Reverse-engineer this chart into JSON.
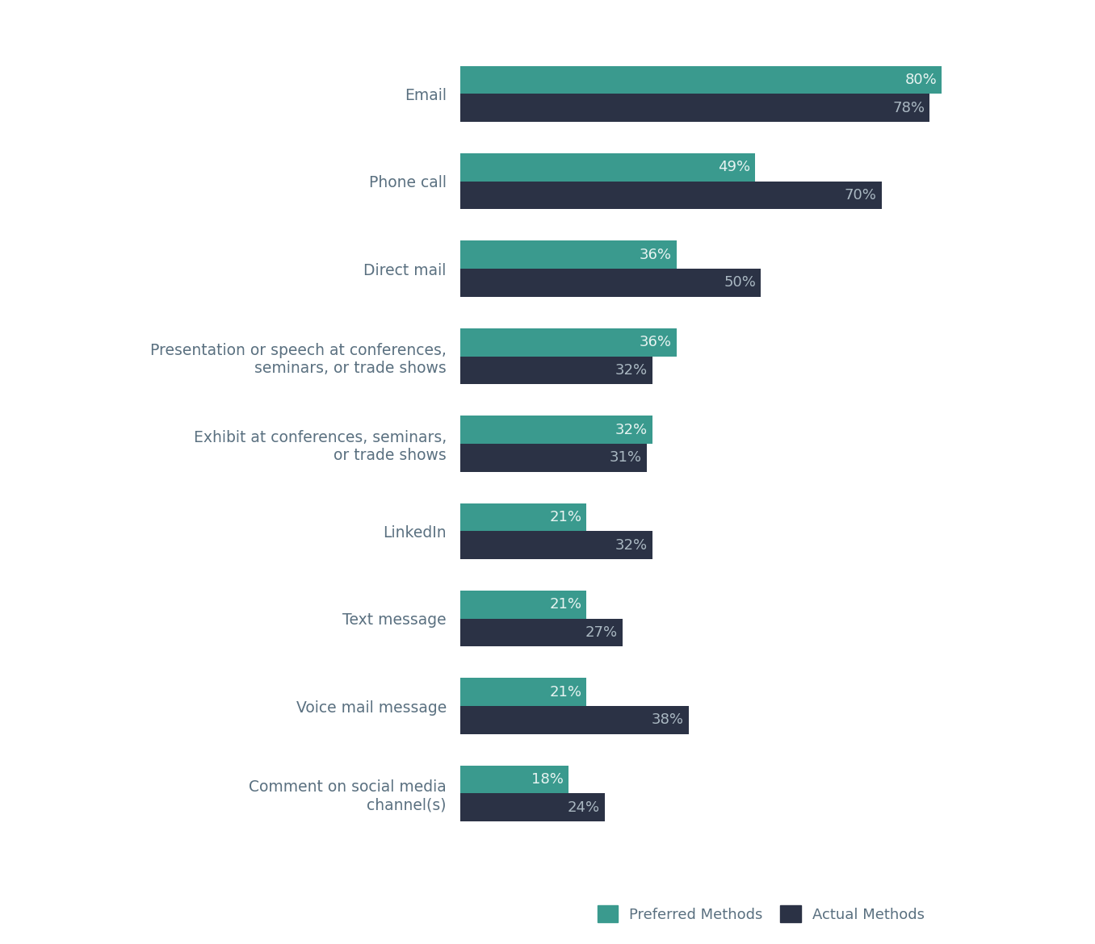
{
  "categories": [
    "Email",
    "Phone call",
    "Direct mail",
    "Presentation or speech at conferences,\nseminars, or trade shows",
    "Exhibit at conferences, seminars,\nor trade shows",
    "LinkedIn",
    "Text message",
    "Voice mail message",
    "Comment on social media\nchannel(s)"
  ],
  "preferred": [
    80,
    49,
    36,
    36,
    32,
    21,
    21,
    21,
    18
  ],
  "actual": [
    78,
    70,
    50,
    32,
    31,
    32,
    27,
    38,
    24
  ],
  "preferred_color": "#3a9a8e",
  "actual_color": "#2b3245",
  "background_color": "#ffffff",
  "label_color_preferred": "#e8f4f2",
  "label_color_actual": "#aab8c2",
  "bar_height": 0.32,
  "legend_preferred": "Preferred Methods",
  "legend_actual": "Actual Methods",
  "label_fontsize": 13,
  "category_fontsize": 13.5,
  "legend_fontsize": 13,
  "category_text_color": "#5a7080"
}
